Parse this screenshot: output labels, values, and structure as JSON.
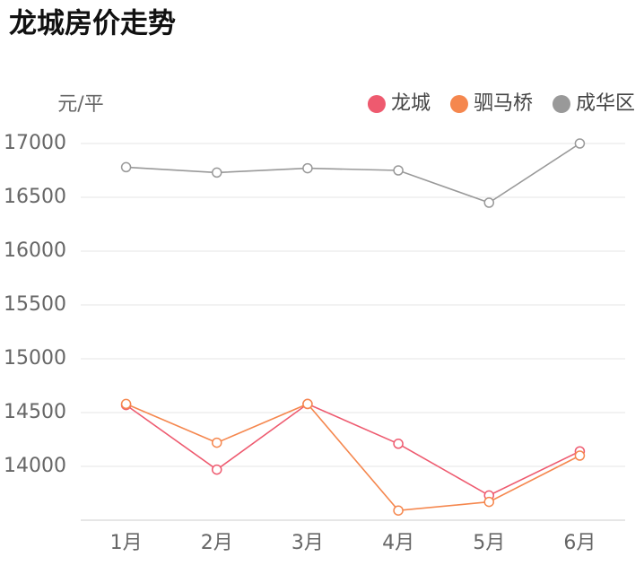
{
  "chart_data": {
    "type": "line",
    "title": "龙城房价走势",
    "y_label": "元/平",
    "categories": [
      "1月",
      "2月",
      "3月",
      "4月",
      "5月",
      "6月"
    ],
    "series": [
      {
        "name": "龙城",
        "color": "#ee5a6f",
        "values": [
          14570,
          13970,
          14580,
          14210,
          13730,
          14140
        ]
      },
      {
        "name": "驷马桥",
        "color": "#f5874e",
        "values": [
          14580,
          14220,
          14580,
          13590,
          13670,
          14100
        ]
      },
      {
        "name": "成华区",
        "color": "#999999",
        "values": [
          16780,
          16730,
          16770,
          16750,
          16450,
          17000
        ]
      }
    ],
    "ylim": [
      13500,
      17000
    ],
    "yticks": [
      14000,
      14500,
      15000,
      15500,
      16000,
      16500,
      17000
    ],
    "grid": true
  }
}
